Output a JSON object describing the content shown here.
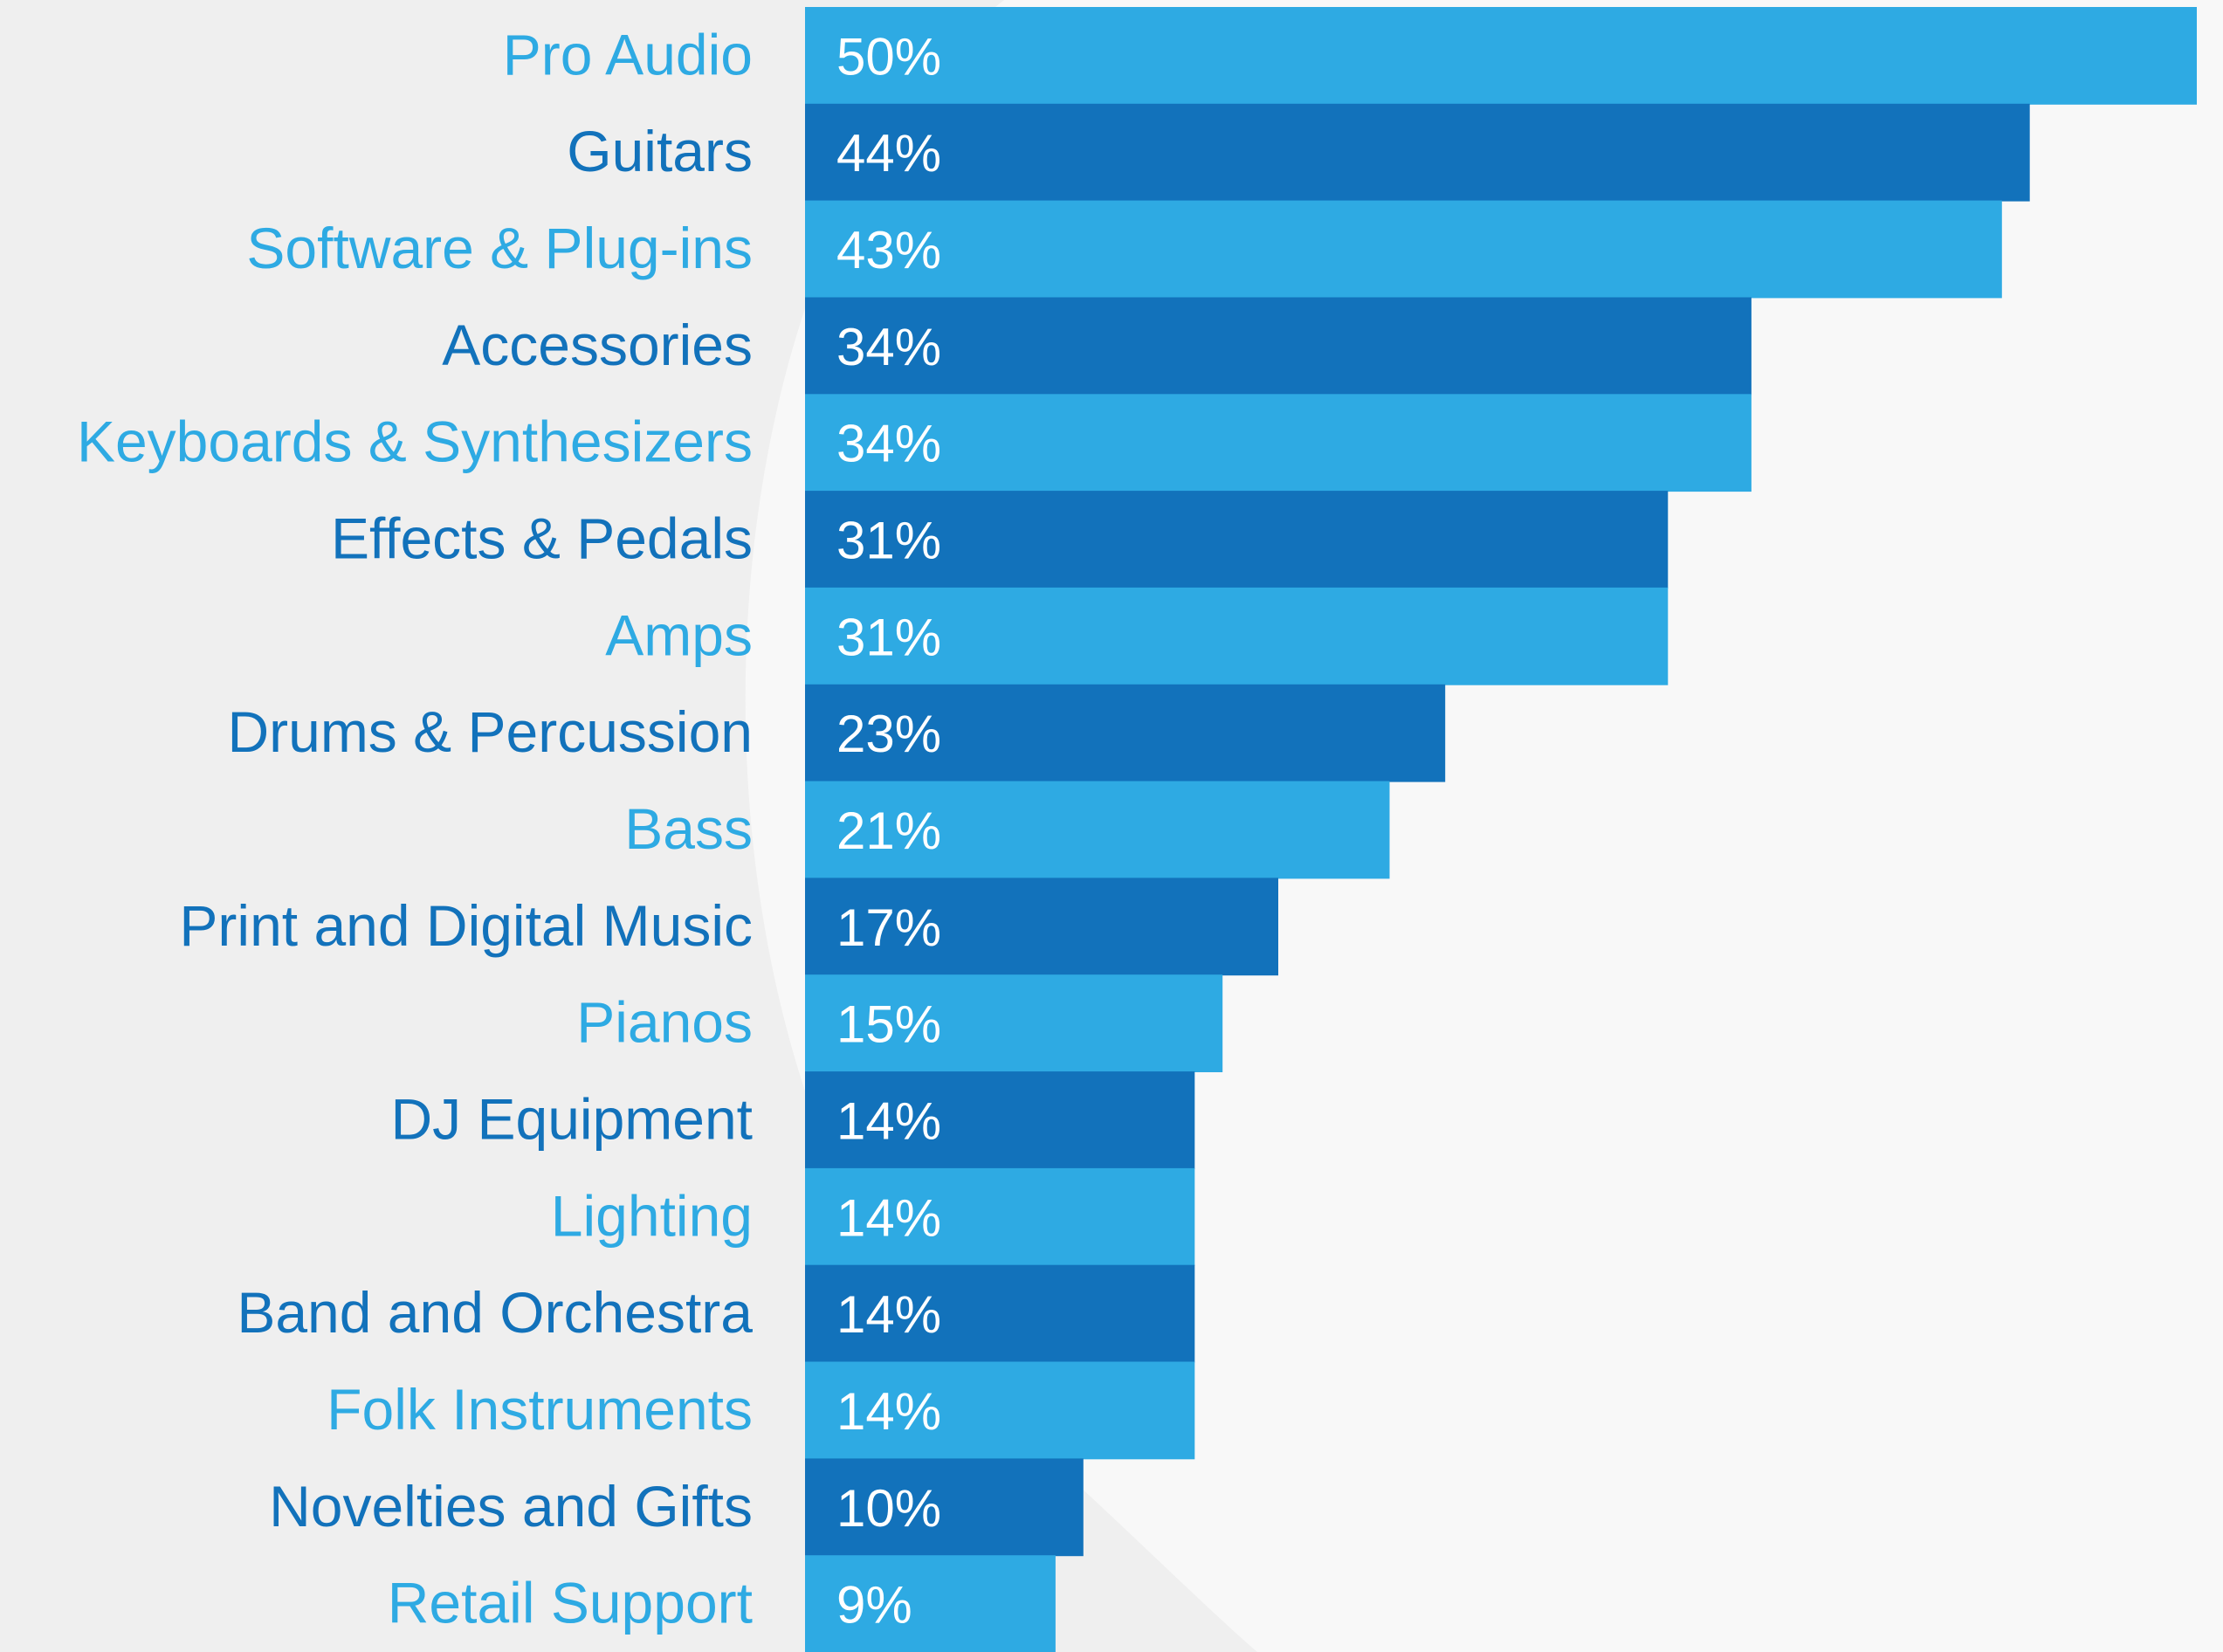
{
  "colors": {
    "background": "#efefef",
    "background_curve": "#f8f8f8",
    "light_blue": "#2eaae3",
    "dark_blue": "#1272bb",
    "value_text": "#ffffff"
  },
  "chart_data": {
    "type": "bar",
    "orientation": "horizontal",
    "title": "",
    "xlabel": "",
    "ylabel": "",
    "xlim": [
      0,
      50
    ],
    "grid": false,
    "legend": "none",
    "categories": [
      "Pro Audio",
      "Guitars",
      "Software & Plug-ins",
      "Accessories",
      "Keyboards & Synthesizers",
      "Effects & Pedals",
      "Amps",
      "Drums & Percussion",
      "Bass",
      "Print and Digital Music",
      "Pianos",
      "DJ Equipment",
      "Lighting",
      "Band and Orchestra",
      "Folk Instruments",
      "Novelties and Gifts",
      "Retail Support"
    ],
    "values": [
      50,
      44,
      43,
      34,
      34,
      31,
      31,
      23,
      21,
      17,
      15,
      14,
      14,
      14,
      14,
      10,
      9
    ],
    "value_labels": [
      "50%",
      "44%",
      "43%",
      "34%",
      "34%",
      "31%",
      "31%",
      "23%",
      "21%",
      "17%",
      "15%",
      "14%",
      "14%",
      "14%",
      "14%",
      "10%",
      "9%"
    ],
    "unit": "%"
  }
}
